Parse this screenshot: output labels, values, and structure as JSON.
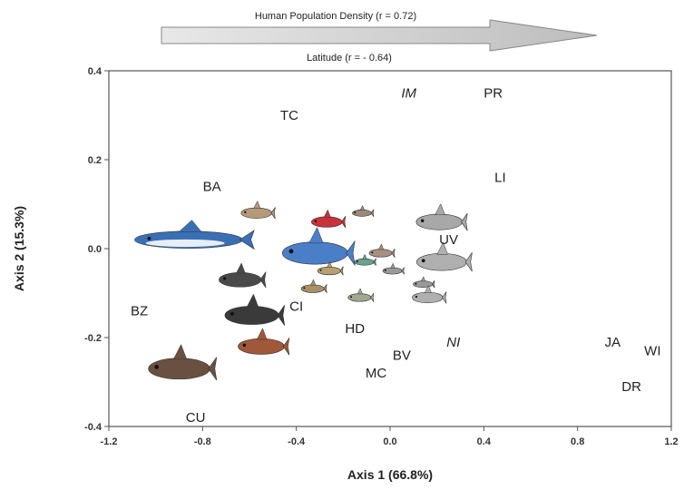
{
  "chart_data": {
    "type": "scatter",
    "xlabel": "Axis 1 (66.8%)",
    "ylabel": "Axis 2 (15.3%)",
    "xlim": [
      -1.2,
      1.2
    ],
    "ylim": [
      -0.4,
      0.4
    ],
    "xticks": [
      "-1.2",
      "-0.8",
      "-0.4",
      "0.0",
      "0.4",
      "0.8",
      "1.2"
    ],
    "yticks": [
      "0.4",
      "0.2",
      "0.0",
      "-0.2",
      "-0.4"
    ],
    "grid": false,
    "vectors": [
      {
        "label": "Human Population Density (r = 0.72)",
        "direction": "right"
      },
      {
        "label": "Latitude (r = - 0.64)",
        "direction": "right"
      }
    ],
    "sites": [
      {
        "label": "IM",
        "x": 0.08,
        "y": 0.35,
        "italic": true
      },
      {
        "label": "PR",
        "x": 0.44,
        "y": 0.35,
        "italic": false
      },
      {
        "label": "TC",
        "x": -0.43,
        "y": 0.3,
        "italic": false
      },
      {
        "label": "LI",
        "x": 0.47,
        "y": 0.16,
        "italic": false
      },
      {
        "label": "BA",
        "x": -0.76,
        "y": 0.14,
        "italic": false
      },
      {
        "label": "UV",
        "x": 0.25,
        "y": 0.02,
        "italic": false
      },
      {
        "label": "BZ",
        "x": -1.07,
        "y": -0.14,
        "italic": false
      },
      {
        "label": "CI",
        "x": -0.4,
        "y": -0.13,
        "italic": false
      },
      {
        "label": "HD",
        "x": -0.15,
        "y": -0.18,
        "italic": false
      },
      {
        "label": "NI",
        "x": 0.27,
        "y": -0.21,
        "italic": true
      },
      {
        "label": "BV",
        "x": 0.05,
        "y": -0.24,
        "italic": false
      },
      {
        "label": "JA",
        "x": 0.95,
        "y": -0.21,
        "italic": false
      },
      {
        "label": "WI",
        "x": 1.12,
        "y": -0.23,
        "italic": false
      },
      {
        "label": "MC",
        "x": -0.06,
        "y": -0.28,
        "italic": false
      },
      {
        "label": "DR",
        "x": 1.03,
        "y": -0.31,
        "italic": false
      },
      {
        "label": "CU",
        "x": -0.83,
        "y": -0.38,
        "italic": false
      }
    ],
    "fish_icons": [
      {
        "name": "shark",
        "x": -0.86,
        "y": 0.02,
        "color": "#3a6fb5",
        "len": 0.56
      },
      {
        "name": "blue-fish",
        "x": -0.32,
        "y": -0.01,
        "color": "#4a7fc8",
        "len": 0.34
      },
      {
        "name": "red-fish",
        "x": -0.27,
        "y": 0.06,
        "color": "#c8323a",
        "len": 0.16
      },
      {
        "name": "tan-fish-top",
        "x": -0.57,
        "y": 0.08,
        "color": "#b49a7a",
        "len": 0.16
      },
      {
        "name": "small-top-fish",
        "x": -0.12,
        "y": 0.08,
        "color": "#9a8a7a",
        "len": 0.1
      },
      {
        "name": "grey-fish-a",
        "x": 0.21,
        "y": 0.06,
        "color": "#a8a8a8",
        "len": 0.24
      },
      {
        "name": "grey-fish-b",
        "x": 0.22,
        "y": -0.03,
        "color": "#b0b0b0",
        "len": 0.26
      },
      {
        "name": "small-brown-a",
        "x": -0.04,
        "y": -0.01,
        "color": "#a89080",
        "len": 0.12
      },
      {
        "name": "small-green",
        "x": -0.11,
        "y": -0.03,
        "color": "#6aa090",
        "len": 0.1
      },
      {
        "name": "small-grey-a",
        "x": 0.01,
        "y": -0.05,
        "color": "#9a9a9a",
        "len": 0.1
      },
      {
        "name": "tan-fish-mid",
        "x": -0.26,
        "y": -0.05,
        "color": "#b8a070",
        "len": 0.12
      },
      {
        "name": "small-grey-b",
        "x": 0.14,
        "y": -0.08,
        "color": "#9a9a9a",
        "len": 0.1
      },
      {
        "name": "tan-fish-low",
        "x": -0.33,
        "y": -0.09,
        "color": "#a89068",
        "len": 0.12
      },
      {
        "name": "green-grey-fish",
        "x": -0.13,
        "y": -0.11,
        "color": "#a0a890",
        "len": 0.12
      },
      {
        "name": "grey-fish-c",
        "x": 0.16,
        "y": -0.11,
        "color": "#b0b0b0",
        "len": 0.16
      },
      {
        "name": "dark-grouper-a",
        "x": -0.64,
        "y": -0.07,
        "color": "#4a4a4a",
        "len": 0.22
      },
      {
        "name": "dark-grouper-b",
        "x": -0.59,
        "y": -0.15,
        "color": "#3a3a3a",
        "len": 0.28
      },
      {
        "name": "red-grouper",
        "x": -0.55,
        "y": -0.22,
        "color": "#a0583a",
        "len": 0.24
      },
      {
        "name": "brown-grouper",
        "x": -0.9,
        "y": -0.27,
        "color": "#6a5040",
        "len": 0.32
      }
    ]
  }
}
